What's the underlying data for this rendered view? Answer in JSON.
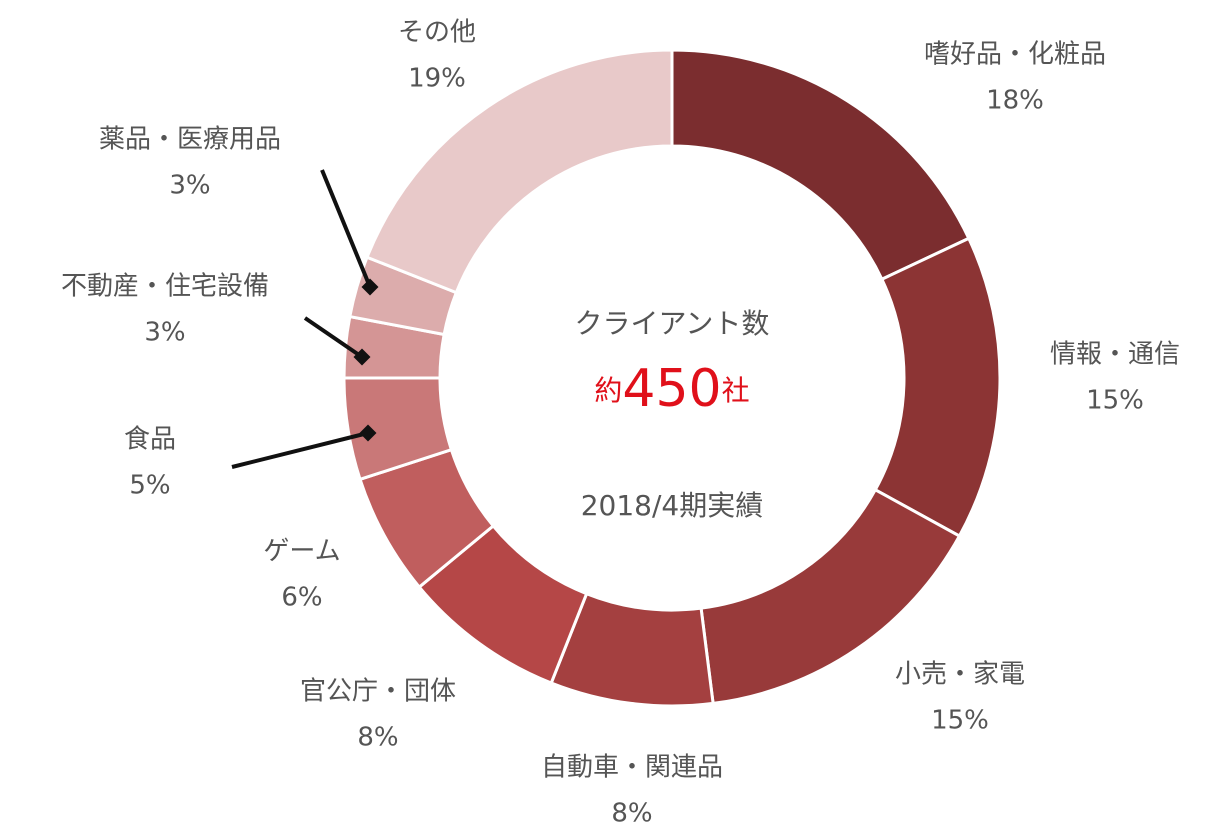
{
  "chart_data": {
    "type": "donut",
    "categories": [
      "嗜好品・化粧品",
      "情報・通信",
      "小売・家電",
      "自動車・関連品",
      "官公庁・団体",
      "ゲーム",
      "食品",
      "不動産・住宅設備",
      "薬品・医療用品",
      "その他"
    ],
    "values": [
      18,
      15,
      15,
      8,
      8,
      6,
      5,
      3,
      3,
      19
    ],
    "value_labels": [
      "18%",
      "15%",
      "15%",
      "8%",
      "8%",
      "6%",
      "5%",
      "3%",
      "3%",
      "19%"
    ],
    "colors": [
      "#7b2d2f",
      "#8c3434",
      "#983a3a",
      "#a44040",
      "#b54747",
      "#c05e5e",
      "#c97878",
      "#d49595",
      "#dcacac",
      "#e8c9c9"
    ],
    "center_label": "クライアント数",
    "center_value": [
      "約",
      "450",
      "社"
    ],
    "center_note": "2018/4期実績"
  }
}
